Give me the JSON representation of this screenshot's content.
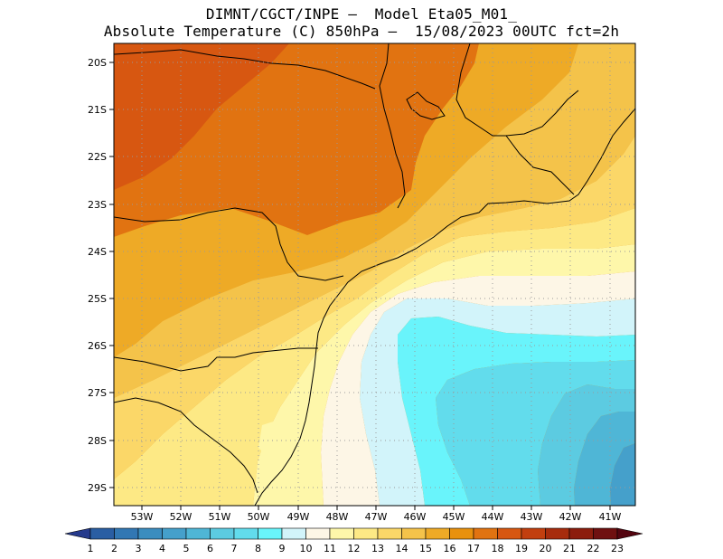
{
  "title_line1": "DIMNT/CGCT/INPE –  Model Eta05_M01_",
  "title_line2": "Absolute Temperature (C) 850hPa –  15/08/2023 00UTC fct=2h",
  "lat_labels": [
    "20S",
    "21S",
    "22S",
    "23S",
    "24S",
    "25S",
    "26S",
    "27S",
    "28S",
    "29S"
  ],
  "lon_labels": [
    "53W",
    "52W",
    "51W",
    "50W",
    "49W",
    "48W",
    "47W",
    "46W",
    "45W",
    "44W",
    "43W",
    "42W",
    "41W"
  ],
  "colorbar": {
    "labels": [
      "1",
      "2",
      "3",
      "4",
      "5",
      "6",
      "7",
      "8",
      "9",
      "10",
      "11",
      "12",
      "13",
      "14",
      "15",
      "16",
      "17",
      "18",
      "19",
      "20",
      "21",
      "22",
      "23"
    ],
    "colors": [
      "#253a8c",
      "#2a5ea3",
      "#3277b3",
      "#3b8dbf",
      "#45a0cb",
      "#4fb6d6",
      "#5ccbe1",
      "#62dcec",
      "#69f4fb",
      "#d2f4fa",
      "#fdf6e6",
      "#fef7aa",
      "#fde985",
      "#fbd768",
      "#f4c34a",
      "#eeaa26",
      "#e8910e",
      "#e17311",
      "#d75711",
      "#c23f0f",
      "#a72c0d",
      "#8c1d0d",
      "#6f1010",
      "#540510"
    ]
  }
}
